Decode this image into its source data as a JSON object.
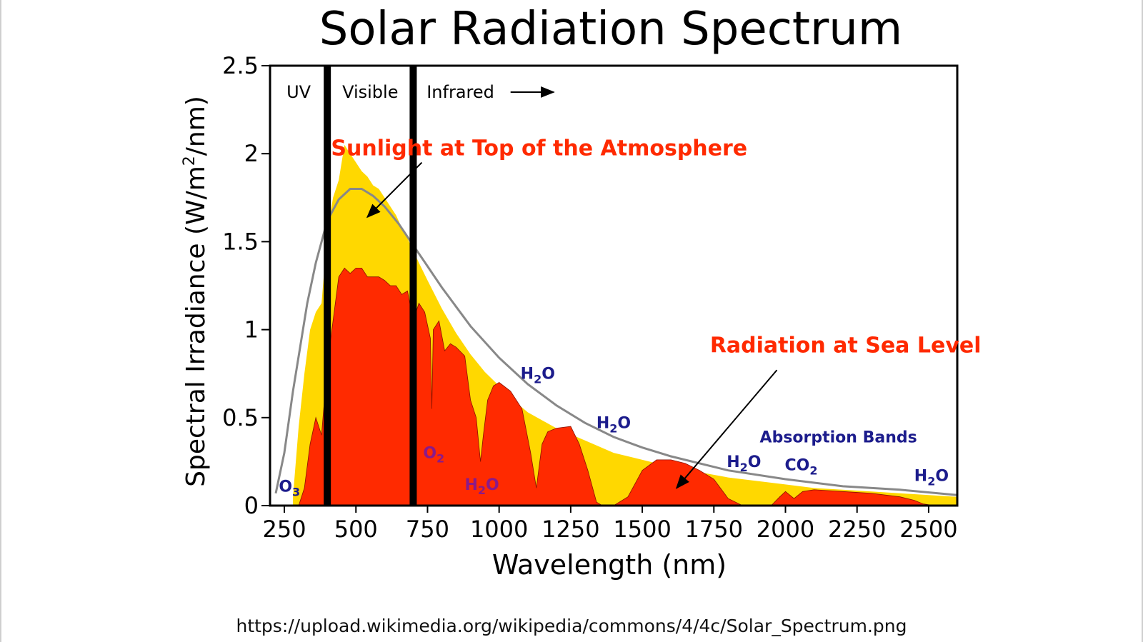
{
  "source_url": "https://upload.wikimedia.org/wikipedia/commons/4/4c/Solar_Spectrum.png",
  "colors": {
    "top_of_atmosphere": "#ffd800",
    "sea_level": "#ff2a00",
    "blackbody_curve": "#888888",
    "region_divider": "#000000",
    "callout_text": "#ff2a00",
    "absorption_text": "#1c1c8c",
    "absorption_text_magenta": "#8a1a8a"
  },
  "chart_data": {
    "type": "area",
    "title": "Solar Radiation Spectrum",
    "xlabel": "Wavelength (nm)",
    "ylabel_main": "Spectral Irradiance (W/m",
    "ylabel_sup": "2",
    "ylabel_end": "/nm)",
    "xlim": [
      200,
      2600
    ],
    "ylim": [
      0,
      2.5
    ],
    "x_ticks": [
      250,
      500,
      750,
      1000,
      1250,
      1500,
      1750,
      2000,
      2250,
      2500
    ],
    "x_tick_labels": [
      "250",
      "500",
      "750",
      "1000",
      "1250",
      "1500",
      "1750",
      "2000",
      "2250",
      "2500"
    ],
    "y_ticks": [
      0,
      0.5,
      1,
      1.5,
      2,
      2.5
    ],
    "y_tick_labels": [
      "0",
      "0.5",
      "1",
      "1.5",
      "2",
      "2.5"
    ],
    "grid": false,
    "region_dividers": [
      400,
      700
    ],
    "region_labels": [
      {
        "text": "UV",
        "x": 300,
        "y": 2.35
      },
      {
        "text": "Visible",
        "x": 550,
        "y": 2.35
      },
      {
        "text": "Infrared",
        "x": 865,
        "y": 2.35
      }
    ],
    "series": [
      {
        "label": "Sunlight at Top of the Atmosphere",
        "kind": "area",
        "x": [
          280,
          300,
          320,
          340,
          360,
          380,
          400,
          420,
          440,
          460,
          480,
          500,
          520,
          540,
          560,
          580,
          600,
          620,
          640,
          660,
          680,
          700,
          720,
          750,
          800,
          850,
          900,
          950,
          1000,
          1050,
          1100,
          1200,
          1300,
          1400,
          1500,
          1600,
          1700,
          1800,
          1900,
          2000,
          2100,
          2200,
          2300,
          2400,
          2500,
          2600
        ],
        "y": [
          0.05,
          0.45,
          0.75,
          1.0,
          1.1,
          1.15,
          1.55,
          1.75,
          1.85,
          2.05,
          2.0,
          1.95,
          1.9,
          1.87,
          1.82,
          1.8,
          1.75,
          1.7,
          1.65,
          1.58,
          1.52,
          1.45,
          1.38,
          1.28,
          1.12,
          0.98,
          0.86,
          0.76,
          0.68,
          0.6,
          0.53,
          0.44,
          0.37,
          0.3,
          0.26,
          0.22,
          0.19,
          0.16,
          0.14,
          0.12,
          0.1,
          0.09,
          0.08,
          0.07,
          0.06,
          0.05
        ]
      },
      {
        "label": "Radiation at Sea Level",
        "kind": "area",
        "x": [
          300,
          320,
          340,
          360,
          380,
          400,
          420,
          440,
          460,
          480,
          500,
          520,
          540,
          560,
          580,
          600,
          620,
          640,
          660,
          680,
          700,
          720,
          740,
          760,
          765,
          770,
          790,
          810,
          830,
          850,
          880,
          900,
          920,
          935,
          945,
          960,
          980,
          1000,
          1040,
          1080,
          1110,
          1130,
          1150,
          1170,
          1200,
          1250,
          1280,
          1310,
          1340,
          1360,
          1400,
          1450,
          1500,
          1550,
          1600,
          1650,
          1700,
          1750,
          1800,
          1850,
          1900,
          1950,
          1980,
          2000,
          2030,
          2060,
          2100,
          2200,
          2300,
          2400,
          2450,
          2480,
          2520,
          2600
        ],
        "y": [
          0,
          0.1,
          0.35,
          0.5,
          0.4,
          0.8,
          1.05,
          1.3,
          1.35,
          1.32,
          1.35,
          1.35,
          1.3,
          1.3,
          1.3,
          1.28,
          1.25,
          1.25,
          1.2,
          1.22,
          1.05,
          1.15,
          1.1,
          0.95,
          0.55,
          1.0,
          1.05,
          0.88,
          0.92,
          0.9,
          0.85,
          0.6,
          0.5,
          0.25,
          0.4,
          0.6,
          0.68,
          0.7,
          0.65,
          0.55,
          0.3,
          0.1,
          0.35,
          0.42,
          0.44,
          0.45,
          0.35,
          0.2,
          0.02,
          0,
          0,
          0.05,
          0.2,
          0.26,
          0.26,
          0.24,
          0.2,
          0.15,
          0.04,
          0,
          0,
          0,
          0.05,
          0.08,
          0.04,
          0.08,
          0.09,
          0.08,
          0.07,
          0.05,
          0.03,
          0.01,
          0,
          0
        ]
      },
      {
        "label": "",
        "kind": "line",
        "x": [
          220,
          250,
          280,
          300,
          330,
          360,
          400,
          440,
          480,
          520,
          560,
          600,
          650,
          700,
          750,
          800,
          900,
          1000,
          1100,
          1200,
          1300,
          1400,
          1500,
          1600,
          1800,
          2000,
          2200,
          2400,
          2600
        ],
        "y": [
          0.07,
          0.3,
          0.65,
          0.85,
          1.15,
          1.38,
          1.62,
          1.74,
          1.8,
          1.8,
          1.76,
          1.7,
          1.6,
          1.48,
          1.36,
          1.24,
          1.02,
          0.84,
          0.69,
          0.57,
          0.47,
          0.39,
          0.33,
          0.28,
          0.2,
          0.15,
          0.11,
          0.09,
          0.06
        ]
      }
    ],
    "annotations": [
      {
        "text": "Sunlight at Top of the Atmosphere",
        "x": 1140,
        "y": 1.99,
        "color_key": "callout_text",
        "arrow_from": [
          730,
          1.95
        ],
        "arrow_to": [
          540,
          1.64
        ]
      },
      {
        "text": "Radiation at Sea Level",
        "x": 2210,
        "y": 0.87,
        "color_key": "callout_text",
        "arrow_from": [
          1970,
          0.77
        ],
        "arrow_to": [
          1620,
          0.1
        ]
      },
      {
        "text": "Absorption Bands",
        "x": 2185,
        "y": 0.36,
        "color_key": "absorption_text"
      }
    ],
    "absorption_labels": [
      {
        "main": "O",
        "sub": "3",
        "x": 268,
        "y": 0.08,
        "color_key": "absorption_text"
      },
      {
        "main": "O",
        "sub": "2",
        "x": 772,
        "y": 0.27,
        "color_key": "absorption_text_magenta"
      },
      {
        "main": "H",
        "sub": "2",
        "tail": "O",
        "x": 940,
        "y": 0.09,
        "color_key": "absorption_text_magenta"
      },
      {
        "main": "H",
        "sub": "2",
        "tail": "O",
        "x": 1135,
        "y": 0.72,
        "color_key": "absorption_text"
      },
      {
        "main": "H",
        "sub": "2",
        "tail": "O",
        "x": 1400,
        "y": 0.44,
        "color_key": "absorption_text"
      },
      {
        "main": "H",
        "sub": "2",
        "tail": "O",
        "x": 1855,
        "y": 0.22,
        "color_key": "absorption_text"
      },
      {
        "main": "CO",
        "sub": "2",
        "x": 2055,
        "y": 0.2,
        "color_key": "absorption_text"
      },
      {
        "main": "H",
        "sub": "2",
        "tail": "O",
        "x": 2510,
        "y": 0.14,
        "color_key": "absorption_text"
      }
    ]
  }
}
